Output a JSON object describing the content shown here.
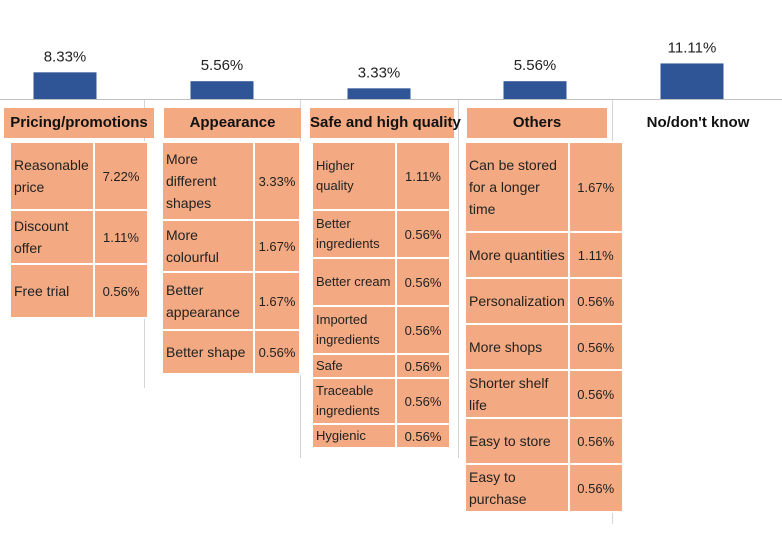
{
  "chart_data": {
    "type": "bar",
    "categories": [
      "Pricing/promotions",
      "Appearance",
      "Safe and high quality",
      "Others",
      "No/don't know"
    ],
    "values": [
      8.33,
      5.56,
      3.33,
      5.56,
      11.11
    ],
    "value_labels": [
      "8.33%",
      "5.56%",
      "3.33%",
      "5.56%",
      "11.11%"
    ],
    "bar_color": "#2f5597",
    "cell_color": "#f3a981",
    "ylim": [
      0,
      15
    ]
  },
  "groups": [
    {
      "header": "Pricing/promotions",
      "rows": [
        {
          "label": "Reasonable price",
          "value": "7.22%"
        },
        {
          "label": "Discount offer",
          "value": "1.11%"
        },
        {
          "label": "Free trial",
          "value": "0.56%"
        }
      ]
    },
    {
      "header": "Appearance",
      "rows": [
        {
          "label": "More different shapes",
          "value": "3.33%"
        },
        {
          "label": "More colourful",
          "value": "1.67%"
        },
        {
          "label": "Better appearance",
          "value": "1.67%"
        },
        {
          "label": "Better shape",
          "value": "0.56%"
        }
      ]
    },
    {
      "header": "Safe and high quality",
      "rows": [
        {
          "label": "Higher quality",
          "value": "1.11%"
        },
        {
          "label": "Better ingredients",
          "value": "0.56%"
        },
        {
          "label": "Better cream",
          "value": "0.56%"
        },
        {
          "label": "Imported ingredients",
          "value": "0.56%"
        },
        {
          "label": "Safe",
          "value": "0.56%"
        },
        {
          "label": "Traceable ingredients",
          "value": "0.56%"
        },
        {
          "label": "Hygienic",
          "value": "0.56%"
        }
      ]
    },
    {
      "header": "Others",
      "rows": [
        {
          "label": "Can be stored for a longer time",
          "value": "1.67%"
        },
        {
          "label": "More quantities",
          "value": "1.11%"
        },
        {
          "label": "Personalization",
          "value": "0.56%"
        },
        {
          "label": "More shops",
          "value": "0.56%"
        },
        {
          "label": "Shorter shelf life",
          "value": "0.56%"
        },
        {
          "label": "Easy to store",
          "value": "0.56%"
        },
        {
          "label": "Easy to purchase",
          "value": "0.56%"
        }
      ]
    },
    {
      "header": "No/don't know",
      "rows": []
    }
  ]
}
